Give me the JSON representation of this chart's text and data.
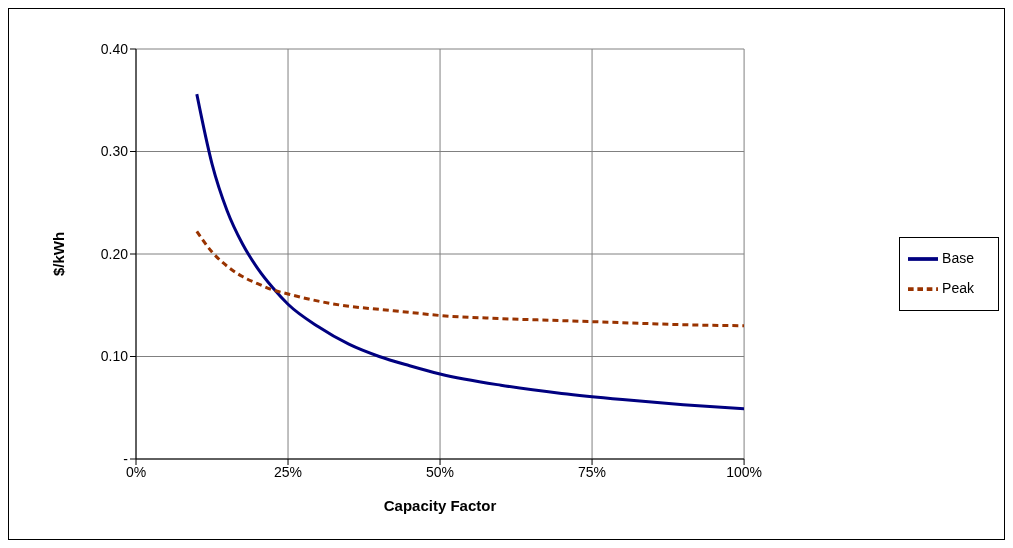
{
  "chart_data": {
    "type": "line",
    "xlabel": "Capacity Factor",
    "ylabel": "$/kWh",
    "x": [
      10,
      12.5,
      15,
      17.5,
      20,
      22.5,
      25,
      30,
      35,
      40,
      45,
      50,
      60,
      70,
      80,
      90,
      100
    ],
    "series": [
      {
        "name": "Base",
        "color": "#000080",
        "line_style": "solid",
        "values": [
          0.356,
          0.288,
          0.242,
          0.21,
          0.186,
          0.167,
          0.151,
          0.129,
          0.112,
          0.1,
          0.091,
          0.083,
          0.072,
          0.064,
          0.058,
          0.053,
          0.049
        ]
      },
      {
        "name": "Peak",
        "color": "#993300",
        "line_style": "dashed",
        "values": [
          0.222,
          0.202,
          0.188,
          0.178,
          0.171,
          0.165,
          0.161,
          0.154,
          0.149,
          0.146,
          0.143,
          0.14,
          0.137,
          0.135,
          0.133,
          0.131,
          0.13
        ]
      }
    ],
    "xlim": [
      0,
      100
    ],
    "xticks": [
      {
        "value": 0,
        "label": "0%"
      },
      {
        "value": 25,
        "label": "25%"
      },
      {
        "value": 50,
        "label": "50%"
      },
      {
        "value": 75,
        "label": "75%"
      },
      {
        "value": 100,
        "label": "100%"
      }
    ],
    "ylim": [
      0,
      0.4
    ],
    "yticks": [
      {
        "value": 0,
        "label": "-"
      },
      {
        "value": 0.1,
        "label": "0.10"
      },
      {
        "value": 0.2,
        "label": "0.20"
      },
      {
        "value": 0.3,
        "label": "0.30"
      },
      {
        "value": 0.4,
        "label": "0.40"
      }
    ],
    "grid": true,
    "legend": "right",
    "marker": "none"
  }
}
